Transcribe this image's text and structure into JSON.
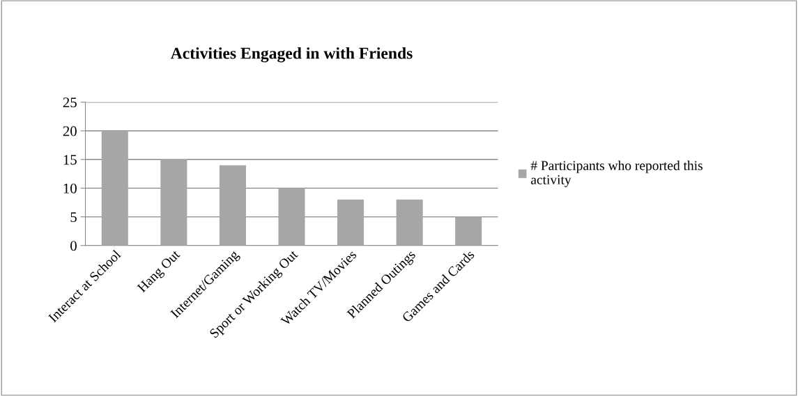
{
  "chart_data": {
    "type": "bar",
    "title": "Activities Engaged in with Friends",
    "categories": [
      "Interact at School",
      "Hang Out",
      "Internet/Gaming",
      "Sport or Working Out",
      "Watch TV/Movies",
      "Planned Outings",
      "Games and Cards"
    ],
    "series": [
      {
        "name": "# Participants who reported this activity",
        "color": "#a6a6a6",
        "values": [
          20,
          15,
          14,
          10,
          8,
          8,
          5
        ]
      }
    ],
    "ylim": [
      0,
      25
    ],
    "yticks": [
      0,
      5,
      10,
      15,
      20,
      25
    ],
    "grid": "y",
    "legend": "right"
  }
}
